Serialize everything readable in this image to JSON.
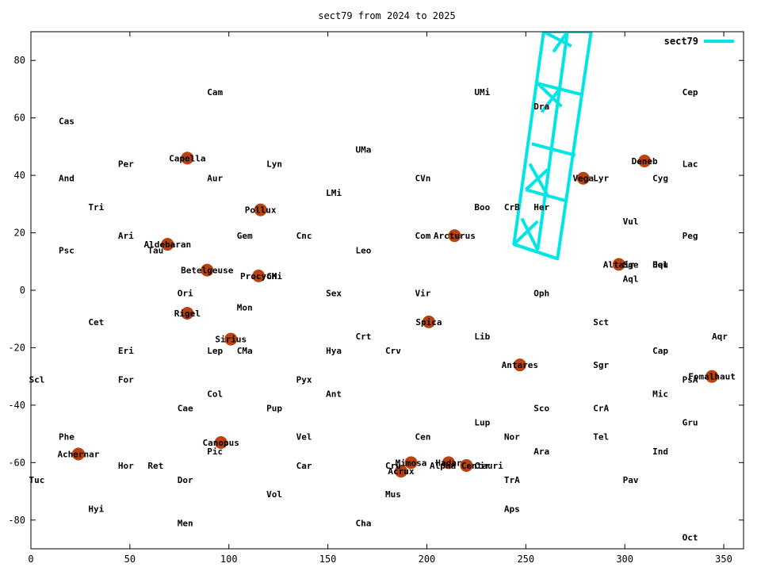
{
  "chart_data": {
    "type": "scatter",
    "title": "sect79 from 2024 to 2025",
    "xlim": [
      0,
      360
    ],
    "ylim": [
      -90,
      90
    ],
    "x_ticks": [
      0,
      50,
      100,
      150,
      200,
      250,
      300,
      350
    ],
    "y_ticks": [
      -80,
      -60,
      -40,
      -20,
      0,
      20,
      40,
      60,
      80
    ],
    "grid": false,
    "legend": {
      "placement": "top-right",
      "entries": [
        {
          "name": "sect79",
          "color": "#00e5e5"
        }
      ]
    },
    "colors": {
      "star": "#b84210",
      "sector": "#00e5e5"
    },
    "constellations": [
      {
        "name": "Cam",
        "x": 89,
        "y": 69
      },
      {
        "name": "UMi",
        "x": 224,
        "y": 69
      },
      {
        "name": "Cep",
        "x": 329,
        "y": 69
      },
      {
        "name": "Cas",
        "x": 14,
        "y": 59
      },
      {
        "name": "Dra",
        "x": 254,
        "y": 64
      },
      {
        "name": "UMa",
        "x": 164,
        "y": 49
      },
      {
        "name": "Per",
        "x": 44,
        "y": 44
      },
      {
        "name": "Lyn",
        "x": 119,
        "y": 44
      },
      {
        "name": "Lac",
        "x": 329,
        "y": 44
      },
      {
        "name": "And",
        "x": 14,
        "y": 39
      },
      {
        "name": "Aur",
        "x": 89,
        "y": 39
      },
      {
        "name": "CVn",
        "x": 194,
        "y": 39
      },
      {
        "name": "Lyr",
        "x": 284,
        "y": 39
      },
      {
        "name": "Cyg",
        "x": 314,
        "y": 39
      },
      {
        "name": "LMi",
        "x": 149,
        "y": 34
      },
      {
        "name": "Tri",
        "x": 29,
        "y": 29
      },
      {
        "name": "Boo",
        "x": 224,
        "y": 29
      },
      {
        "name": "CrB",
        "x": 239,
        "y": 29
      },
      {
        "name": "Her",
        "x": 254,
        "y": 29
      },
      {
        "name": "Vul",
        "x": 299,
        "y": 24
      },
      {
        "name": "Ari",
        "x": 44,
        "y": 19
      },
      {
        "name": "Gem",
        "x": 104,
        "y": 19
      },
      {
        "name": "Cnc",
        "x": 134,
        "y": 19
      },
      {
        "name": "Com",
        "x": 194,
        "y": 19
      },
      {
        "name": "Peg",
        "x": 329,
        "y": 19
      },
      {
        "name": "Psc",
        "x": 14,
        "y": 14
      },
      {
        "name": "Tau",
        "x": 59,
        "y": 14
      },
      {
        "name": "Leo",
        "x": 164,
        "y": 14
      },
      {
        "name": "Sge",
        "x": 299,
        "y": 9
      },
      {
        "name": "Del",
        "x": 314,
        "y": 9
      },
      {
        "name": "Equ",
        "x": 314,
        "y": 9
      },
      {
        "name": "CMi",
        "x": 119,
        "y": 5
      },
      {
        "name": "Aql",
        "x": 299,
        "y": 4
      },
      {
        "name": "Ori",
        "x": 74,
        "y": -1
      },
      {
        "name": "Sex",
        "x": 149,
        "y": -1
      },
      {
        "name": "Vir",
        "x": 194,
        "y": -1
      },
      {
        "name": "Oph",
        "x": 254,
        "y": -1
      },
      {
        "name": "Mon",
        "x": 104,
        "y": -6
      },
      {
        "name": "Cet",
        "x": 29,
        "y": -11
      },
      {
        "name": "Sct",
        "x": 284,
        "y": -11
      },
      {
        "name": "Crt",
        "x": 164,
        "y": -16
      },
      {
        "name": "Lib",
        "x": 224,
        "y": -16
      },
      {
        "name": "Aqr",
        "x": 344,
        "y": -16
      },
      {
        "name": "Eri",
        "x": 44,
        "y": -21
      },
      {
        "name": "Lep",
        "x": 89,
        "y": -21
      },
      {
        "name": "CMa",
        "x": 104,
        "y": -21
      },
      {
        "name": "Hya",
        "x": 149,
        "y": -21
      },
      {
        "name": "Crv",
        "x": 179,
        "y": -21
      },
      {
        "name": "Cap",
        "x": 314,
        "y": -21
      },
      {
        "name": "Sgr",
        "x": 284,
        "y": -26
      },
      {
        "name": "Scl",
        "x": -1,
        "y": -31
      },
      {
        "name": "For",
        "x": 44,
        "y": -31
      },
      {
        "name": "Pyx",
        "x": 134,
        "y": -31
      },
      {
        "name": "PsA",
        "x": 329,
        "y": -31
      },
      {
        "name": "Col",
        "x": 89,
        "y": -36
      },
      {
        "name": "Ant",
        "x": 149,
        "y": -36
      },
      {
        "name": "Mic",
        "x": 314,
        "y": -36
      },
      {
        "name": "Cae",
        "x": 74,
        "y": -41
      },
      {
        "name": "Pup",
        "x": 119,
        "y": -41
      },
      {
        "name": "Sco",
        "x": 254,
        "y": -41
      },
      {
        "name": "CrA",
        "x": 284,
        "y": -41
      },
      {
        "name": "Lup",
        "x": 224,
        "y": -46
      },
      {
        "name": "Gru",
        "x": 329,
        "y": -46
      },
      {
        "name": "Phe",
        "x": 14,
        "y": -51
      },
      {
        "name": "Vel",
        "x": 134,
        "y": -51
      },
      {
        "name": "Cen",
        "x": 194,
        "y": -51
      },
      {
        "name": "Nor",
        "x": 239,
        "y": -51
      },
      {
        "name": "Tel",
        "x": 284,
        "y": -51
      },
      {
        "name": "Pic",
        "x": 89,
        "y": -56
      },
      {
        "name": "Ara",
        "x": 254,
        "y": -56
      },
      {
        "name": "Ind",
        "x": 314,
        "y": -56
      },
      {
        "name": "Hor",
        "x": 44,
        "y": -61
      },
      {
        "name": "Ret",
        "x": 59,
        "y": -61
      },
      {
        "name": "Car",
        "x": 134,
        "y": -61
      },
      {
        "name": "Cru",
        "x": 179,
        "y": -61
      },
      {
        "name": "Cir",
        "x": 224,
        "y": -61
      },
      {
        "name": "Tuc",
        "x": -1,
        "y": -66
      },
      {
        "name": "Dor",
        "x": 74,
        "y": -66
      },
      {
        "name": "TrA",
        "x": 239,
        "y": -66
      },
      {
        "name": "Pav",
        "x": 299,
        "y": -66
      },
      {
        "name": "Vol",
        "x": 119,
        "y": -71
      },
      {
        "name": "Mus",
        "x": 179,
        "y": -71
      },
      {
        "name": "Hyi",
        "x": 29,
        "y": -76
      },
      {
        "name": "Aps",
        "x": 239,
        "y": -76
      },
      {
        "name": "Men",
        "x": 74,
        "y": -81
      },
      {
        "name": "Cha",
        "x": 164,
        "y": -81
      },
      {
        "name": "Oct",
        "x": 329,
        "y": -86
      }
    ],
    "stars": [
      {
        "name": "Capella",
        "x": 79,
        "y": 46
      },
      {
        "name": "Deneb",
        "x": 310,
        "y": 45
      },
      {
        "name": "Vega",
        "x": 279,
        "y": 39
      },
      {
        "name": "Pollux",
        "x": 116,
        "y": 28
      },
      {
        "name": "Arcturus",
        "x": 214,
        "y": 19
      },
      {
        "name": "Aldebaran",
        "x": 69,
        "y": 16
      },
      {
        "name": "Altair",
        "x": 297,
        "y": 9
      },
      {
        "name": "Betelgeuse",
        "x": 89,
        "y": 7
      },
      {
        "name": "Procyon",
        "x": 115,
        "y": 5
      },
      {
        "name": "Rigel",
        "x": 79,
        "y": -8
      },
      {
        "name": "Spica",
        "x": 201,
        "y": -11
      },
      {
        "name": "Sirius",
        "x": 101,
        "y": -17
      },
      {
        "name": "Antares",
        "x": 247,
        "y": -26
      },
      {
        "name": "Fomalhaut",
        "x": 344,
        "y": -30
      },
      {
        "name": "Canopus",
        "x": 96,
        "y": -53
      },
      {
        "name": "Achernar",
        "x": 24,
        "y": -57
      },
      {
        "name": "Mimosa",
        "x": 192,
        "y": -60
      },
      {
        "name": "Hadar",
        "x": 211,
        "y": -60
      },
      {
        "name": "Alpha Centauri",
        "x": 220,
        "y": -61
      },
      {
        "name": "Acrux",
        "x": 187,
        "y": -63
      }
    ],
    "series": [
      {
        "name": "sect79",
        "outline": [
          [
            244,
            16
          ],
          [
            266,
            11
          ],
          [
            283,
            90
          ],
          [
            259,
            90
          ]
        ],
        "rows": [
          [
            [
              244,
              16
            ],
            [
              266,
              11
            ]
          ],
          [
            [
              250,
              35
            ],
            [
              271,
              31
            ]
          ],
          [
            [
              253,
              51
            ],
            [
              275,
              47
            ]
          ],
          [
            [
              256,
              72
            ],
            [
              279,
              68
            ]
          ],
          [
            [
              259,
              90
            ],
            [
              283,
              90
            ]
          ]
        ],
        "mid_rail": [
          [
            256,
            14
          ],
          [
            271,
            90
          ]
        ],
        "crosses": [
          [
            [
              [
                244,
                16
              ],
              [
                256,
                24
              ]
            ],
            [
              [
                256,
                14
              ],
              [
                248,
                25
              ]
            ]
          ],
          [
            [
              [
                250,
                35
              ],
              [
                261,
                42
              ]
            ],
            [
              [
                261,
                33
              ],
              [
                252,
                44
              ]
            ]
          ],
          [
            [
              [
                256,
                72
              ],
              [
                268,
                64
              ]
            ],
            [
              [
                267,
                70
              ],
              [
                258,
                62
              ]
            ]
          ],
          [
            [
              [
                259,
                90
              ],
              [
                273,
                85
              ]
            ],
            [
              [
                271,
                90
              ],
              [
                264,
                83
              ]
            ]
          ]
        ]
      }
    ]
  }
}
